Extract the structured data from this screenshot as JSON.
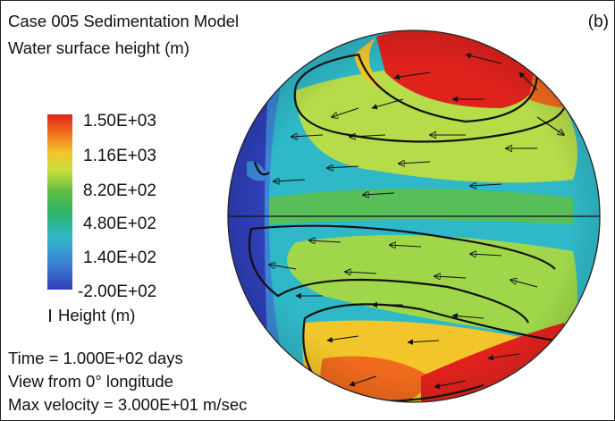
{
  "title_line1": "Case 005 Sedimentation Model",
  "title_line2": "Water surface height (m)",
  "panel_label": "(b)",
  "legend": {
    "ticks": [
      "1.50E+03",
      "1.16E+03",
      "8.20E+02",
      "4.80E+02",
      "1.40E+02",
      "-2.00E+02"
    ],
    "label": "Height (m)",
    "colors": [
      "#e0221d",
      "#f2c62b",
      "#5fbe43",
      "#2fb8c7",
      "#3b86d6",
      "#2f3fb8"
    ]
  },
  "footer": {
    "time": "Time = 1.000E+02 days",
    "view": "View from 0° longitude",
    "velocity": "Max velocity = 3.000E+01 m/sec"
  }
}
